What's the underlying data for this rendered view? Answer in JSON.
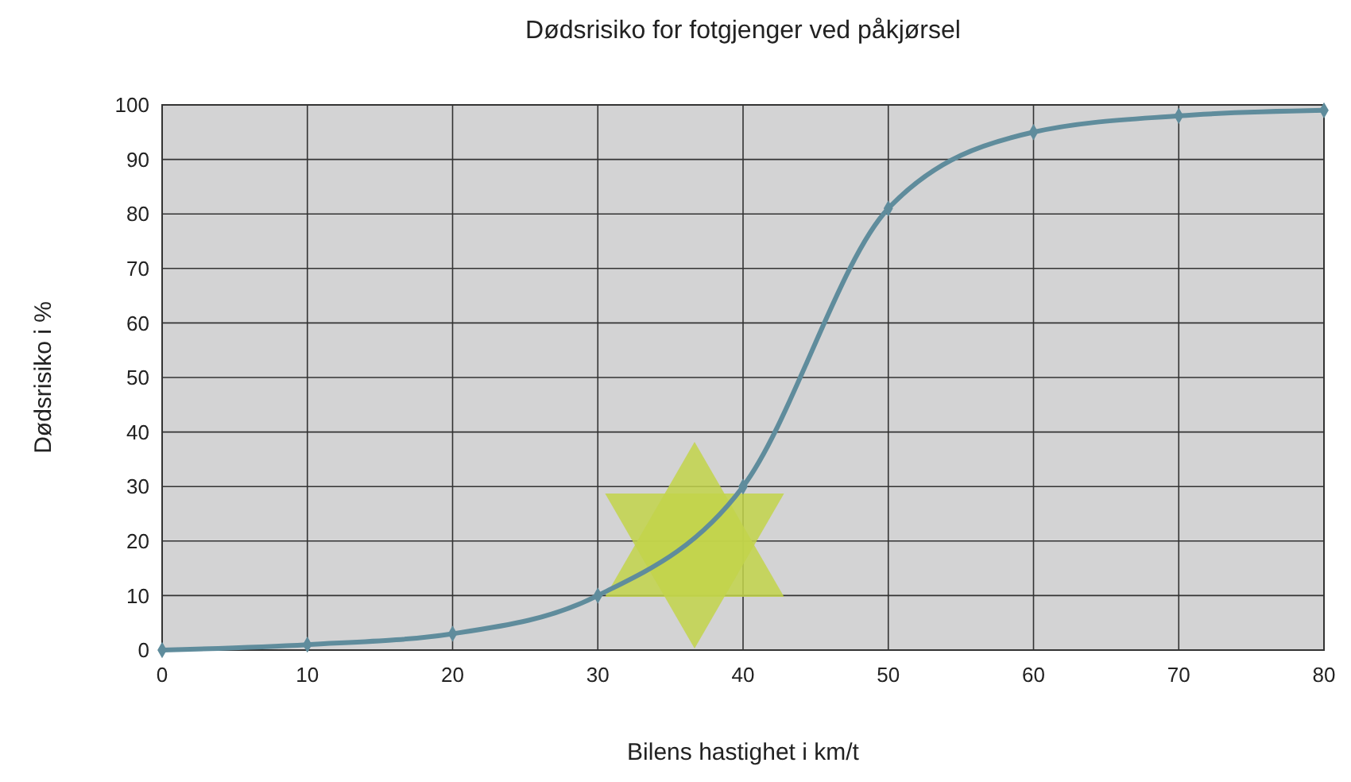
{
  "chart_data": {
    "type": "line",
    "title": "Dødsrisiko for fotgjenger ved påkjørsel",
    "xlabel": "Bilens hastighet i km/t",
    "ylabel": "Dødsrisiko i %",
    "x": [
      0,
      10,
      20,
      30,
      40,
      50,
      60,
      70,
      80
    ],
    "series": [
      {
        "color": "#5f8c9c",
        "values": [
          0,
          1,
          3,
          10,
          30,
          81,
          95,
          98,
          99
        ]
      }
    ],
    "xlim": [
      0,
      80
    ],
    "xticks": [
      0,
      10,
      20,
      30,
      40,
      50,
      60,
      70,
      80
    ],
    "ylim": [
      0,
      100
    ],
    "yticks": [
      0,
      10,
      20,
      30,
      40,
      50,
      60,
      70,
      80,
      90,
      100
    ],
    "grid": true,
    "marker": "diamond",
    "line_style": "solid"
  }
}
